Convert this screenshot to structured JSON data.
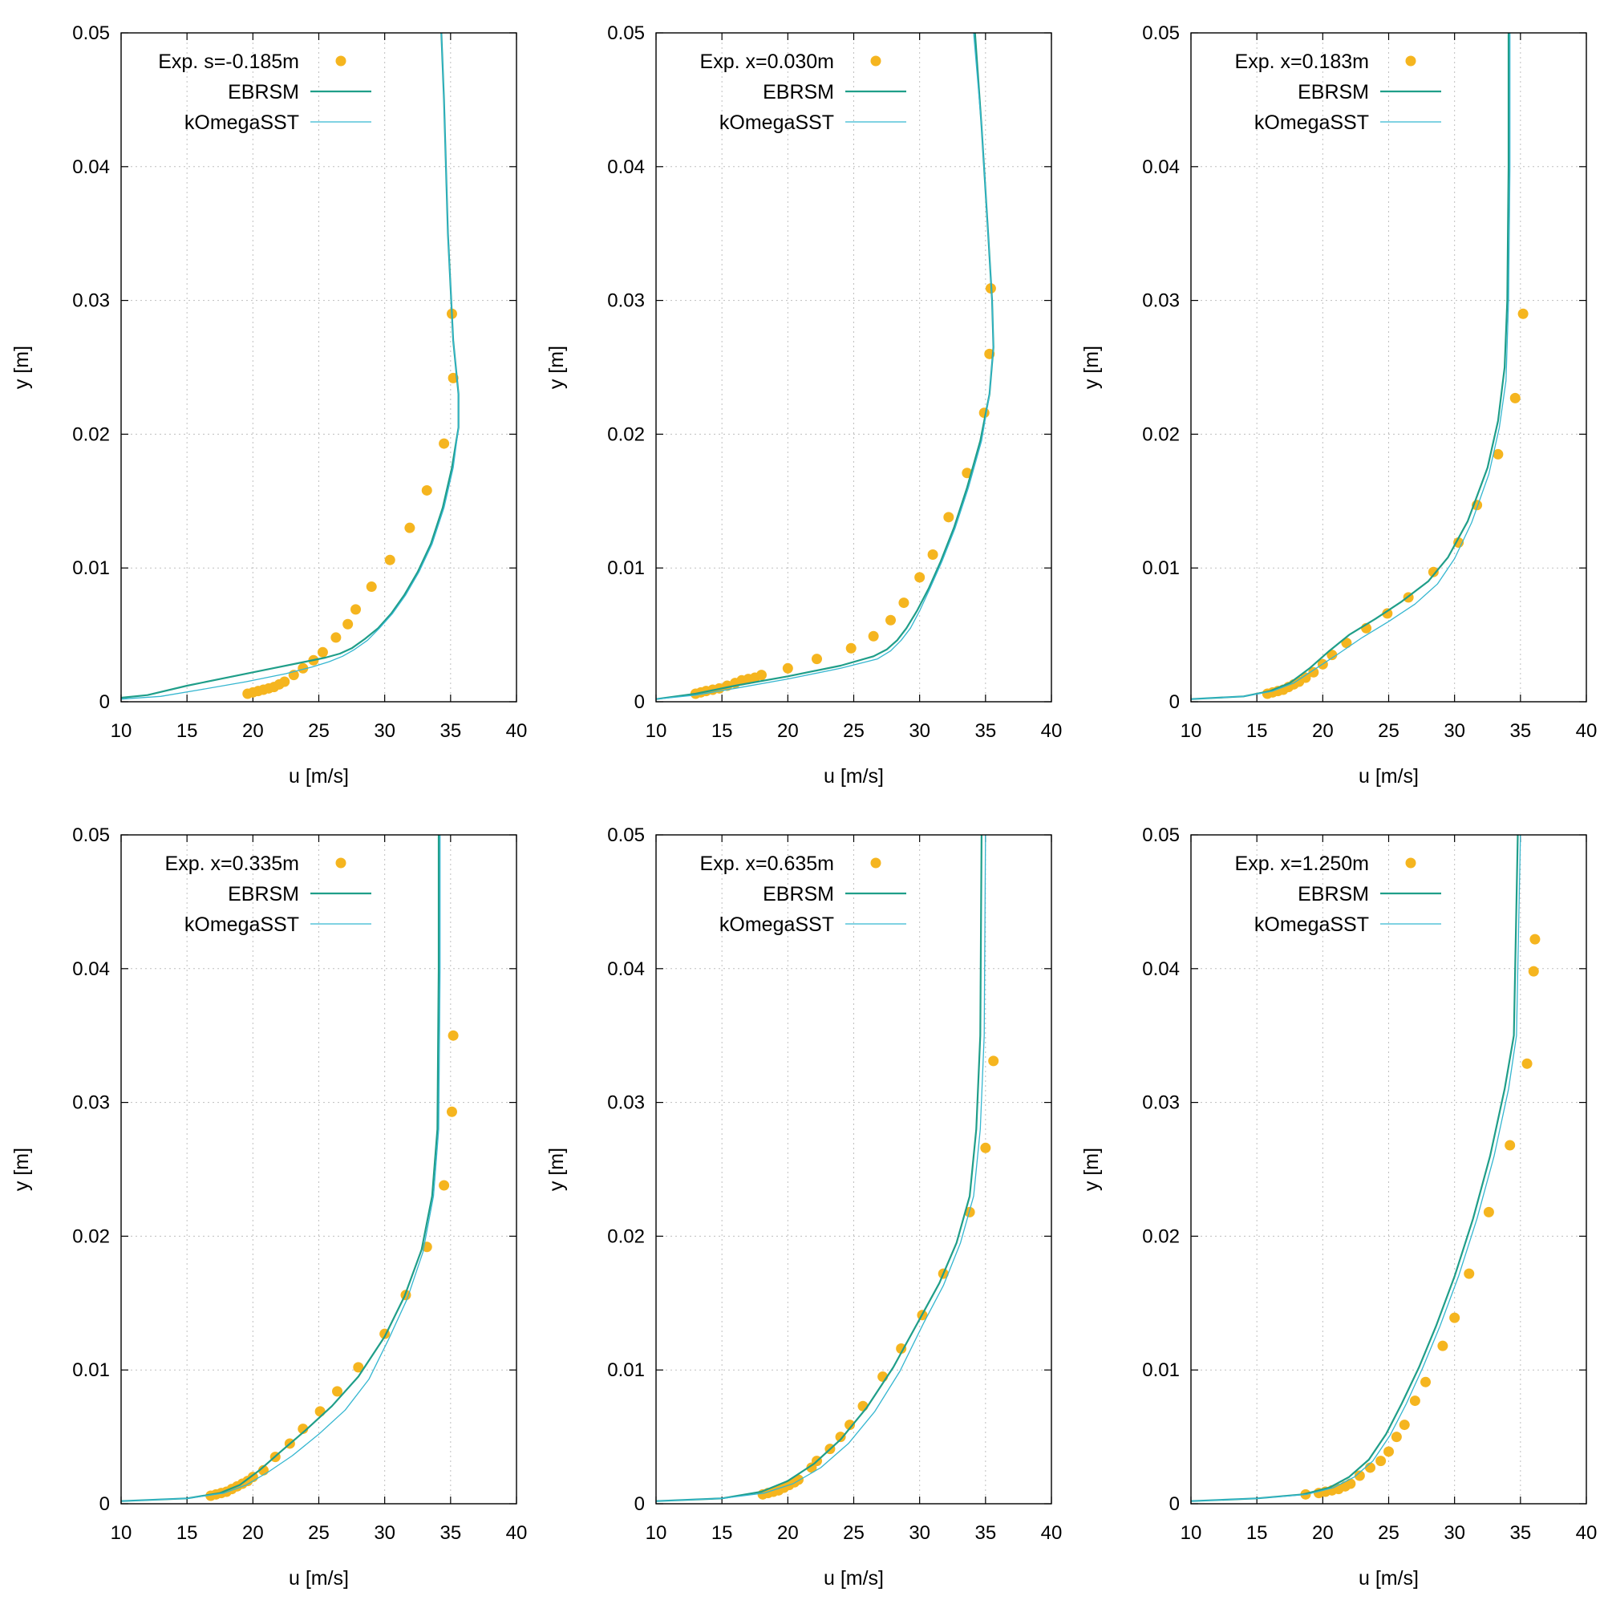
{
  "colors": {
    "experiment": "#f5b51f",
    "ebrsm": "#1f9e89",
    "komegasst": "#35b6d0",
    "grid": "#bfbfbf",
    "frame": "#000000"
  },
  "chart_data": [
    {
      "type": "line",
      "xlabel": "u [m/s]",
      "ylabel": "y [m]",
      "xlim": [
        10,
        40
      ],
      "ylim": [
        0,
        0.05
      ],
      "xticks": [
        "10",
        "15",
        "20",
        "25",
        "30",
        "35",
        "40"
      ],
      "yticks": [
        "0",
        "0.01",
        "0.02",
        "0.03",
        "0.04",
        "0.05"
      ],
      "grid": true,
      "legend_position": "top-left",
      "series": [
        {
          "name": "Exp. s=-0.185m",
          "style": "points",
          "x": [
            19.6,
            20.0,
            20.4,
            20.8,
            21.2,
            21.6,
            22.0,
            22.4,
            23.1,
            23.8,
            24.6,
            25.3,
            26.3,
            27.2,
            27.8,
            29.0,
            30.4,
            31.9,
            33.2,
            34.5,
            35.2,
            35.1
          ],
          "y": [
            0.0006,
            0.0007,
            0.0008,
            0.0009,
            0.001,
            0.0011,
            0.0013,
            0.0015,
            0.002,
            0.0025,
            0.0031,
            0.0037,
            0.0048,
            0.0058,
            0.0069,
            0.0086,
            0.0106,
            0.013,
            0.0158,
            0.0193,
            0.0242,
            0.029
          ]
        },
        {
          "name": "EBRSM",
          "style": "line",
          "x": [
            10.0,
            12.0,
            15.0,
            18.5,
            21.5,
            24.0,
            25.5,
            26.6,
            27.5,
            28.5,
            29.5,
            30.5,
            31.5,
            32.5,
            33.5,
            34.4,
            35.1,
            35.6,
            35.6,
            35.2,
            34.8,
            34.5,
            34.3
          ],
          "y": [
            0.0003,
            0.0005,
            0.0012,
            0.0019,
            0.0025,
            0.003,
            0.0033,
            0.0036,
            0.004,
            0.0047,
            0.0055,
            0.0066,
            0.008,
            0.0097,
            0.0118,
            0.0145,
            0.0175,
            0.0205,
            0.023,
            0.027,
            0.035,
            0.045,
            0.05
          ]
        },
        {
          "name": "kOmegaSST",
          "style": "line",
          "x": [
            10.0,
            13.0,
            16.0,
            19.5,
            22.5,
            24.5,
            25.8,
            26.8,
            27.7,
            28.7,
            29.6,
            30.6,
            31.6,
            32.6,
            33.6,
            34.5,
            35.2,
            35.6,
            35.6,
            35.2,
            34.8,
            34.5,
            34.3
          ],
          "y": [
            0.0002,
            0.0004,
            0.0009,
            0.0015,
            0.0021,
            0.0026,
            0.003,
            0.0034,
            0.0039,
            0.0046,
            0.0055,
            0.0066,
            0.008,
            0.0097,
            0.0118,
            0.0145,
            0.0175,
            0.0205,
            0.023,
            0.027,
            0.035,
            0.045,
            0.05
          ]
        }
      ]
    },
    {
      "type": "line",
      "xlabel": "u [m/s]",
      "ylabel": "y [m]",
      "xlim": [
        10,
        40
      ],
      "ylim": [
        0,
        0.05
      ],
      "xticks": [
        "10",
        "15",
        "20",
        "25",
        "30",
        "35",
        "40"
      ],
      "yticks": [
        "0",
        "0.01",
        "0.02",
        "0.03",
        "0.04",
        "0.05"
      ],
      "grid": true,
      "legend_position": "top-left",
      "series": [
        {
          "name": "Exp. x=0.030m",
          "style": "points",
          "x": [
            13.0,
            13.4,
            13.8,
            14.3,
            14.8,
            15.4,
            16.0,
            16.5,
            17.0,
            17.5,
            18.0,
            20.0,
            22.2,
            24.8,
            26.5,
            27.8,
            28.8,
            30.0,
            31.0,
            32.2,
            33.6,
            34.9,
            35.3,
            35.4
          ],
          "y": [
            0.0006,
            0.0007,
            0.0008,
            0.0009,
            0.001,
            0.0012,
            0.0014,
            0.0016,
            0.0017,
            0.0018,
            0.002,
            0.0025,
            0.0032,
            0.004,
            0.0049,
            0.0061,
            0.0074,
            0.0093,
            0.011,
            0.0138,
            0.0171,
            0.0216,
            0.026,
            0.0309
          ]
        },
        {
          "name": "EBRSM",
          "style": "line",
          "x": [
            10.0,
            13.0,
            16.0,
            20.0,
            24.0,
            26.5,
            27.5,
            28.3,
            29.0,
            29.8,
            30.7,
            31.6,
            32.6,
            33.6,
            34.6,
            35.3,
            35.6,
            35.5,
            35.2,
            34.7,
            34.2
          ],
          "y": [
            0.0002,
            0.0006,
            0.0012,
            0.0019,
            0.0027,
            0.0034,
            0.0039,
            0.0046,
            0.0055,
            0.0068,
            0.0085,
            0.0105,
            0.013,
            0.016,
            0.0195,
            0.023,
            0.0265,
            0.03,
            0.035,
            0.043,
            0.05
          ]
        },
        {
          "name": "kOmegaSST",
          "style": "line",
          "x": [
            10.0,
            13.0,
            16.0,
            20.0,
            24.0,
            26.8,
            27.8,
            28.6,
            29.3,
            30.0,
            30.8,
            31.7,
            32.7,
            33.7,
            34.7,
            35.3,
            35.6,
            35.5,
            35.2,
            34.7,
            34.1
          ],
          "y": [
            0.0002,
            0.0005,
            0.001,
            0.0017,
            0.0025,
            0.0032,
            0.0038,
            0.0046,
            0.0055,
            0.0068,
            0.0085,
            0.0105,
            0.013,
            0.016,
            0.0195,
            0.023,
            0.0265,
            0.03,
            0.035,
            0.043,
            0.05
          ]
        }
      ]
    },
    {
      "type": "line",
      "xlabel": "u [m/s]",
      "ylabel": "y [m]",
      "xlim": [
        10,
        40
      ],
      "ylim": [
        0,
        0.05
      ],
      "xticks": [
        "10",
        "15",
        "20",
        "25",
        "30",
        "35",
        "40"
      ],
      "yticks": [
        "0",
        "0.01",
        "0.02",
        "0.03",
        "0.04",
        "0.05"
      ],
      "grid": true,
      "legend_position": "top-left",
      "series": [
        {
          "name": "Exp. x=0.183m",
          "style": "points",
          "x": [
            15.8,
            16.2,
            16.6,
            17.0,
            17.4,
            17.8,
            18.2,
            18.7,
            19.3,
            20.0,
            20.7,
            21.8,
            23.3,
            24.9,
            26.5,
            28.4,
            30.3,
            31.7,
            33.3,
            34.6,
            35.2
          ],
          "y": [
            0.0006,
            0.0007,
            0.0008,
            0.0009,
            0.0011,
            0.0013,
            0.0015,
            0.0018,
            0.0022,
            0.0028,
            0.0035,
            0.0044,
            0.0055,
            0.0066,
            0.0078,
            0.0097,
            0.0119,
            0.0147,
            0.0185,
            0.0227,
            0.029
          ]
        },
        {
          "name": "EBRSM",
          "style": "line",
          "x": [
            10.0,
            14.0,
            16.0,
            17.5,
            19.0,
            20.5,
            22.0,
            24.0,
            26.0,
            28.0,
            29.5,
            31.0,
            32.5,
            33.3,
            33.8,
            34.0,
            34.1,
            34.1
          ],
          "y": [
            0.0002,
            0.0004,
            0.0008,
            0.0014,
            0.0025,
            0.0038,
            0.005,
            0.0062,
            0.0075,
            0.009,
            0.0108,
            0.0135,
            0.0175,
            0.021,
            0.025,
            0.03,
            0.04,
            0.05
          ]
        },
        {
          "name": "kOmegaSST",
          "style": "line",
          "x": [
            10.0,
            14.0,
            16.2,
            17.8,
            19.5,
            21.2,
            23.0,
            25.0,
            27.0,
            28.7,
            30.0,
            31.3,
            32.6,
            33.4,
            33.9,
            34.1,
            34.2,
            34.2
          ],
          "y": [
            0.0002,
            0.0004,
            0.0008,
            0.0014,
            0.0025,
            0.0036,
            0.0048,
            0.006,
            0.0073,
            0.0088,
            0.0107,
            0.0134,
            0.017,
            0.0205,
            0.024,
            0.03,
            0.04,
            0.05
          ]
        }
      ]
    },
    {
      "type": "line",
      "xlabel": "u [m/s]",
      "ylabel": "y [m]",
      "xlim": [
        10,
        40
      ],
      "ylim": [
        0,
        0.05
      ],
      "xticks": [
        "10",
        "15",
        "20",
        "25",
        "30",
        "35",
        "40"
      ],
      "yticks": [
        "0",
        "0.01",
        "0.02",
        "0.03",
        "0.04",
        "0.05"
      ],
      "grid": true,
      "legend_position": "top-left",
      "series": [
        {
          "name": "Exp. x=0.335m",
          "style": "points",
          "x": [
            16.8,
            17.2,
            17.6,
            18.0,
            18.4,
            18.8,
            19.2,
            19.6,
            20.0,
            20.8,
            21.7,
            22.8,
            23.8,
            25.1,
            26.4,
            28.0,
            30.0,
            31.6,
            33.2,
            34.5,
            35.1,
            35.2
          ],
          "y": [
            0.0006,
            0.0007,
            0.0008,
            0.0009,
            0.0011,
            0.0013,
            0.0015,
            0.0017,
            0.002,
            0.0025,
            0.0035,
            0.0045,
            0.0056,
            0.0069,
            0.0084,
            0.0102,
            0.0127,
            0.0156,
            0.0192,
            0.0238,
            0.0293,
            0.035
          ]
        },
        {
          "name": "EBRSM",
          "style": "line",
          "x": [
            10.0,
            15.0,
            17.5,
            19.0,
            20.5,
            22.0,
            24.0,
            26.0,
            28.0,
            30.0,
            31.5,
            32.8,
            33.6,
            34.0,
            34.1,
            34.1
          ],
          "y": [
            0.0002,
            0.0004,
            0.0008,
            0.0014,
            0.0025,
            0.0038,
            0.0055,
            0.0073,
            0.0095,
            0.0125,
            0.0155,
            0.019,
            0.023,
            0.028,
            0.04,
            0.05
          ]
        },
        {
          "name": "kOmegaSST",
          "style": "line",
          "x": [
            10.0,
            15.0,
            17.8,
            19.5,
            21.2,
            23.0,
            25.0,
            27.0,
            28.8,
            30.3,
            31.7,
            32.9,
            33.7,
            34.1,
            34.2,
            34.2
          ],
          "y": [
            0.0002,
            0.0004,
            0.0008,
            0.0014,
            0.0024,
            0.0036,
            0.0052,
            0.007,
            0.0093,
            0.0123,
            0.0153,
            0.0188,
            0.023,
            0.028,
            0.04,
            0.05
          ]
        }
      ]
    },
    {
      "type": "line",
      "xlabel": "u [m/s]",
      "ylabel": "y [m]",
      "xlim": [
        10,
        40
      ],
      "ylim": [
        0,
        0.05
      ],
      "xticks": [
        "10",
        "15",
        "20",
        "25",
        "30",
        "35",
        "40"
      ],
      "yticks": [
        "0",
        "0.01",
        "0.02",
        "0.03",
        "0.04",
        "0.05"
      ],
      "grid": true,
      "legend_position": "top-left",
      "series": [
        {
          "name": "Exp. x=0.635m",
          "style": "points",
          "x": [
            18.1,
            18.5,
            18.9,
            19.3,
            19.7,
            20.1,
            20.5,
            20.8,
            21.8,
            22.2,
            23.2,
            24.0,
            24.7,
            25.7,
            27.2,
            28.6,
            30.2,
            31.8,
            33.8,
            35.0,
            35.6
          ],
          "y": [
            0.0007,
            0.0008,
            0.0009,
            0.001,
            0.0012,
            0.0014,
            0.0016,
            0.0018,
            0.0027,
            0.0032,
            0.0041,
            0.005,
            0.0059,
            0.0073,
            0.0095,
            0.0116,
            0.0141,
            0.0172,
            0.0218,
            0.0266,
            0.0331
          ]
        },
        {
          "name": "EBRSM",
          "style": "line",
          "x": [
            10.0,
            15.0,
            18.0,
            20.0,
            22.0,
            24.0,
            26.0,
            28.0,
            30.0,
            31.5,
            32.8,
            33.8,
            34.3,
            34.6,
            34.7
          ],
          "y": [
            0.0002,
            0.0004,
            0.0009,
            0.0017,
            0.003,
            0.0048,
            0.0072,
            0.0102,
            0.0138,
            0.0165,
            0.0195,
            0.023,
            0.028,
            0.035,
            0.05
          ]
        },
        {
          "name": "kOmegaSST",
          "style": "line",
          "x": [
            10.0,
            15.0,
            18.2,
            20.4,
            22.5,
            24.6,
            26.6,
            28.5,
            30.3,
            31.8,
            33.1,
            34.1,
            34.6,
            34.9,
            35.0
          ],
          "y": [
            0.0002,
            0.0004,
            0.0008,
            0.0015,
            0.0027,
            0.0045,
            0.0069,
            0.0099,
            0.0135,
            0.0163,
            0.0195,
            0.023,
            0.028,
            0.035,
            0.05
          ]
        }
      ]
    },
    {
      "type": "line",
      "xlabel": "u [m/s]",
      "ylabel": "y [m]",
      "xlim": [
        10,
        40
      ],
      "ylim": [
        0,
        0.05
      ],
      "xticks": [
        "10",
        "15",
        "20",
        "25",
        "30",
        "35",
        "40"
      ],
      "yticks": [
        "0",
        "0.01",
        "0.02",
        "0.03",
        "0.04",
        "0.05"
      ],
      "grid": true,
      "legend_position": "top-left",
      "series": [
        {
          "name": "Exp. x=1.250m",
          "style": "points",
          "x": [
            18.7,
            19.7,
            20.2,
            20.7,
            21.2,
            21.7,
            22.1,
            22.8,
            23.6,
            24.4,
            25.0,
            25.6,
            26.2,
            27.0,
            27.8,
            29.1,
            30.0,
            31.1,
            32.6,
            34.2,
            35.5,
            36.0,
            36.1
          ],
          "y": [
            0.0007,
            0.0008,
            0.0009,
            0.001,
            0.0011,
            0.0013,
            0.0015,
            0.0021,
            0.0027,
            0.0032,
            0.0039,
            0.005,
            0.0059,
            0.0077,
            0.0091,
            0.0118,
            0.0139,
            0.0172,
            0.0218,
            0.0268,
            0.0329,
            0.0398,
            0.0422
          ]
        },
        {
          "name": "EBRSM",
          "style": "line",
          "x": [
            10.0,
            15.0,
            18.5,
            20.5,
            22.0,
            23.5,
            24.8,
            26.0,
            27.3,
            28.6,
            30.0,
            31.4,
            32.7,
            33.8,
            34.5,
            34.8
          ],
          "y": [
            0.0002,
            0.0004,
            0.0007,
            0.0012,
            0.002,
            0.0033,
            0.0052,
            0.0075,
            0.0102,
            0.0133,
            0.017,
            0.0213,
            0.026,
            0.031,
            0.035,
            0.05
          ]
        },
        {
          "name": "kOmegaSST",
          "style": "line",
          "x": [
            10.0,
            15.0,
            18.8,
            20.8,
            22.4,
            23.8,
            25.1,
            26.3,
            27.6,
            28.9,
            30.3,
            31.7,
            33.0,
            34.1,
            34.7,
            35.0
          ],
          "y": [
            0.0002,
            0.0004,
            0.0007,
            0.0012,
            0.002,
            0.0032,
            0.0051,
            0.0074,
            0.0102,
            0.0133,
            0.017,
            0.0213,
            0.026,
            0.031,
            0.035,
            0.05
          ]
        }
      ]
    }
  ]
}
